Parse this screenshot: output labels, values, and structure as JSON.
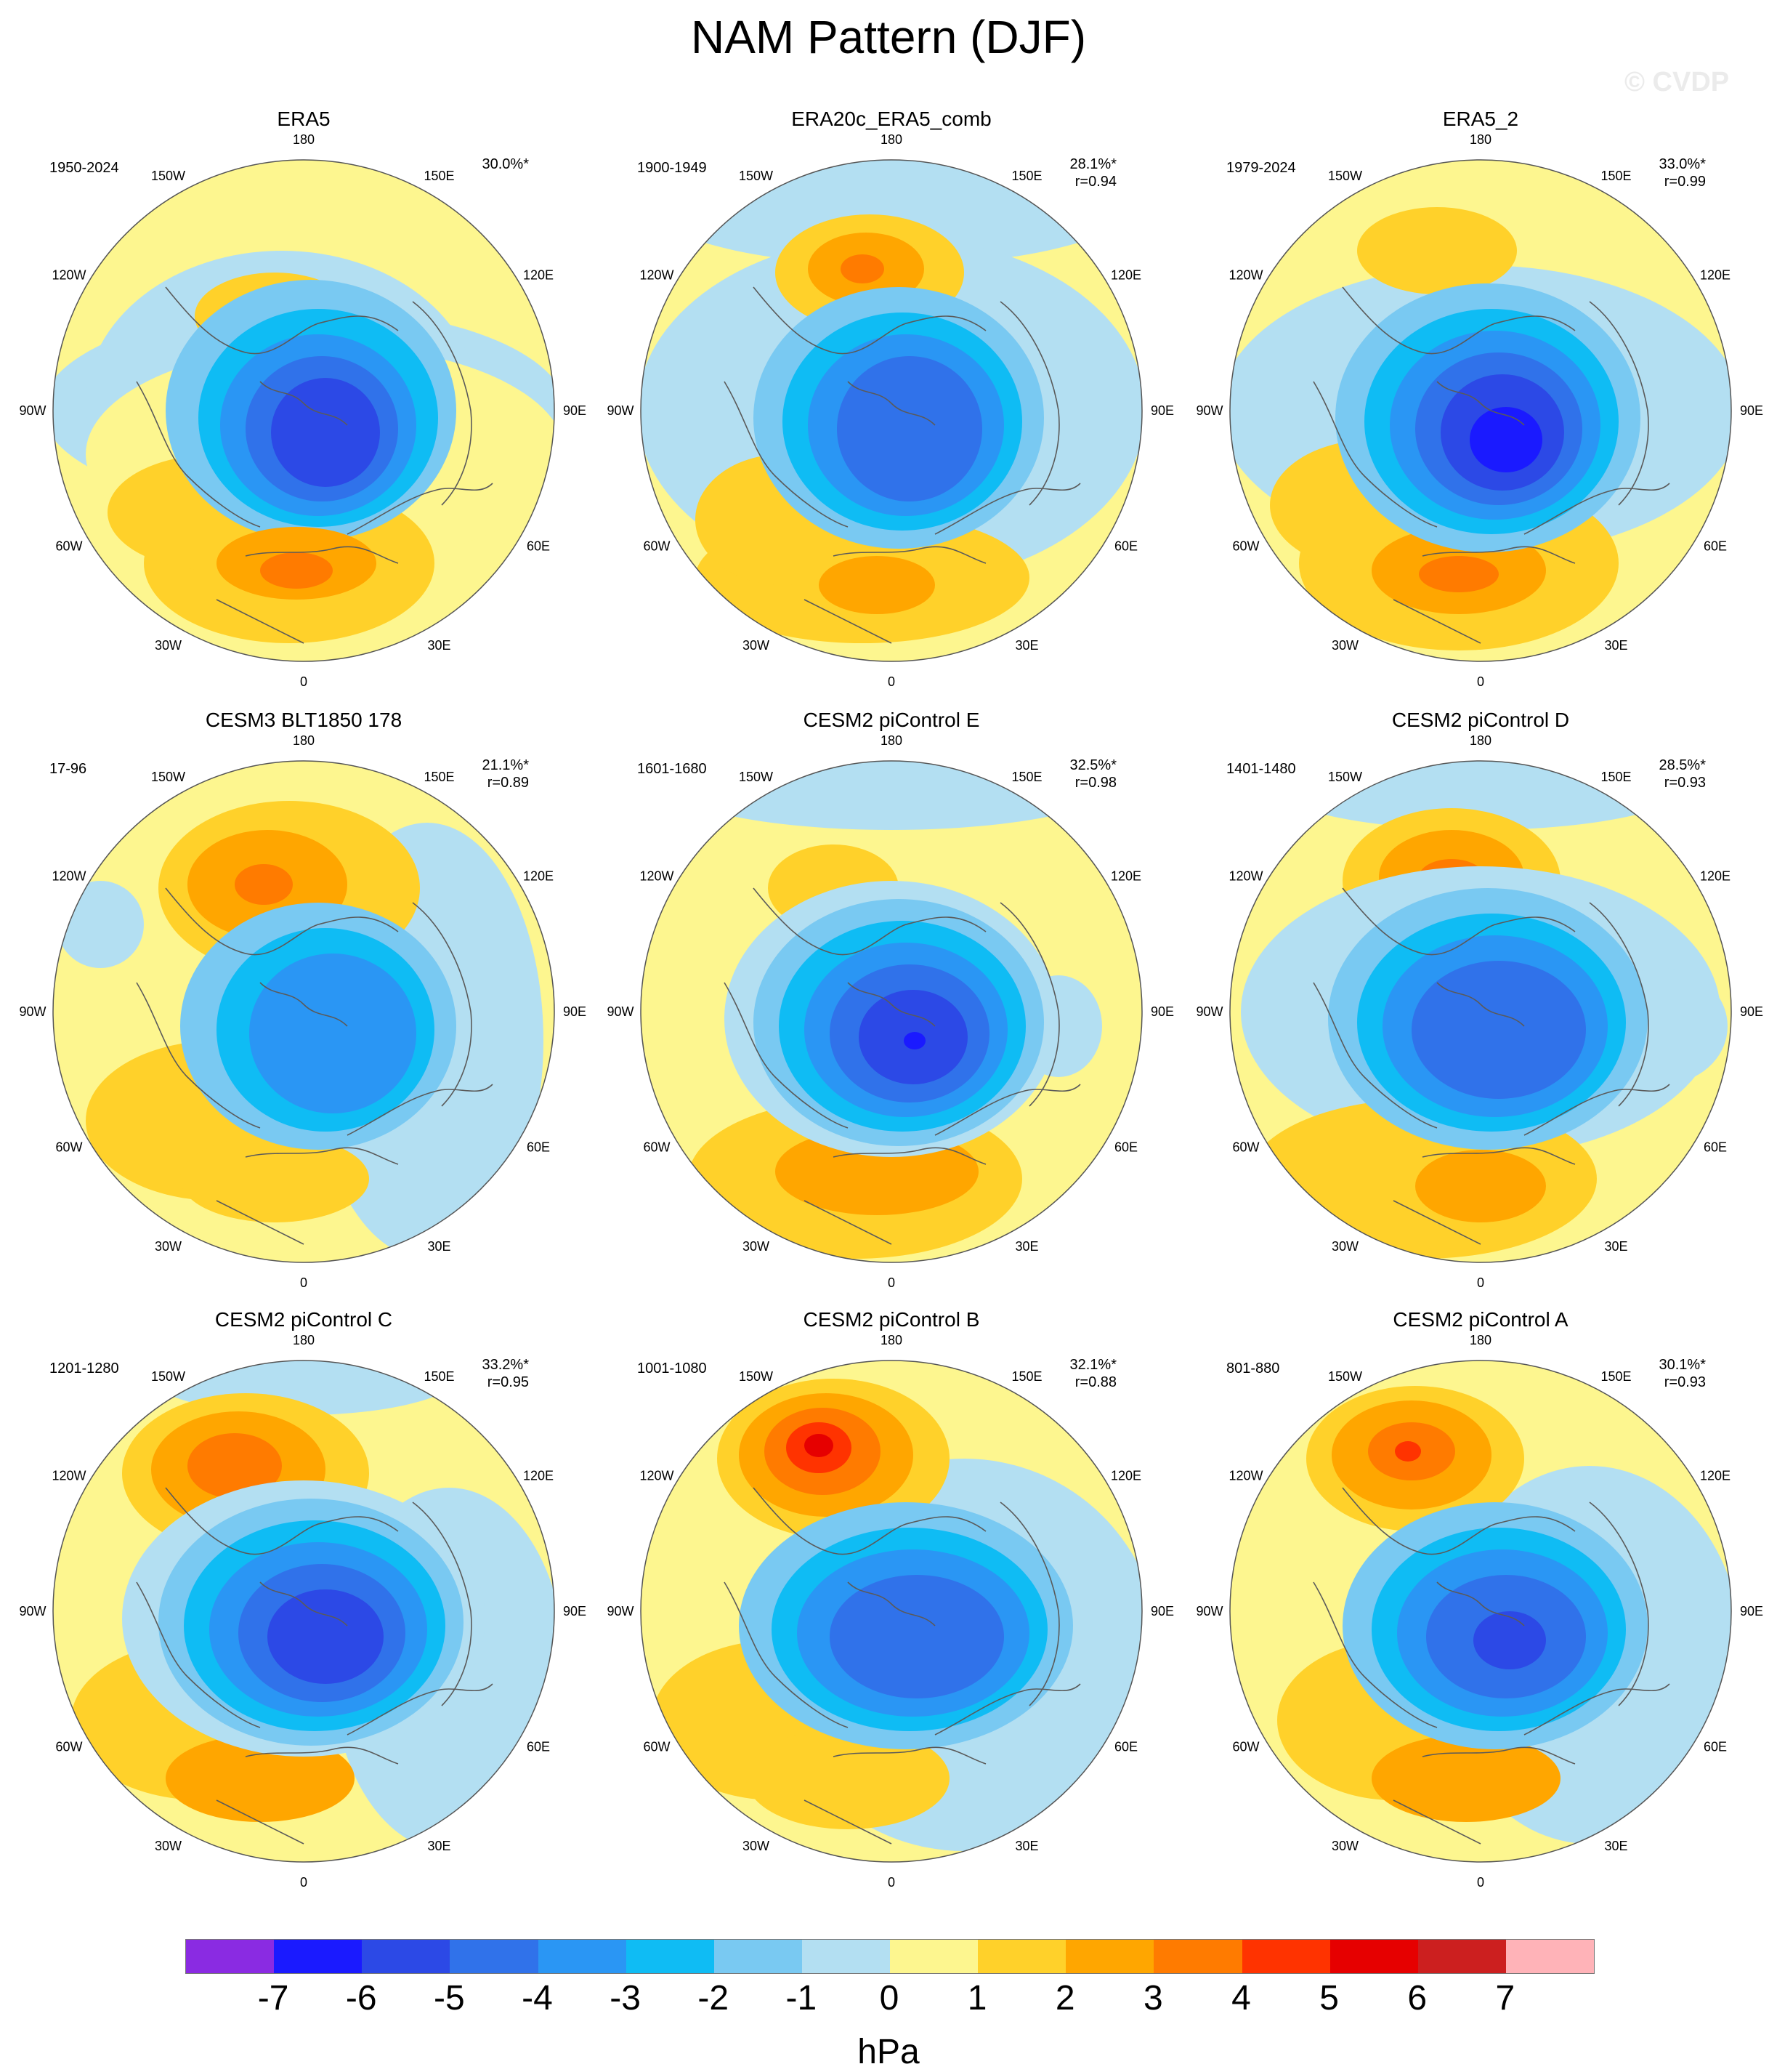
{
  "title": "NAM Pattern (DJF)",
  "watermark": "© CVDP",
  "colors": {
    "land_outline": "#5a5a5a",
    "circle_border": "#555555"
  },
  "longitude_labels": [
    "180",
    "150E",
    "120E",
    "90E",
    "60E",
    "30E",
    "0",
    "30W",
    "60W",
    "90W",
    "120W",
    "150W"
  ],
  "panels": [
    {
      "title": "ERA5",
      "period": "1950-2024",
      "variance": "30.0%*",
      "correlation": ""
    },
    {
      "title": "ERA20c_ERA5_comb",
      "period": "1900-1949",
      "variance": "28.1%*",
      "correlation": "r=0.94"
    },
    {
      "title": "ERA5_2",
      "period": "1979-2024",
      "variance": "33.0%*",
      "correlation": "r=0.99"
    },
    {
      "title": "CESM3 BLT1850 178",
      "period": "17-96",
      "variance": "21.1%*",
      "correlation": "r=0.89"
    },
    {
      "title": "CESM2 piControl E",
      "period": "1601-1680",
      "variance": "32.5%*",
      "correlation": "r=0.98"
    },
    {
      "title": "CESM2 piControl D",
      "period": "1401-1480",
      "variance": "28.5%*",
      "correlation": "r=0.93"
    },
    {
      "title": "CESM2 piControl C",
      "period": "1201-1280",
      "variance": "33.2%*",
      "correlation": "r=0.95"
    },
    {
      "title": "CESM2 piControl B",
      "period": "1001-1080",
      "variance": "32.1%*",
      "correlation": "r=0.88"
    },
    {
      "title": "CESM2 piControl A",
      "period": "801-880",
      "variance": "30.1%*",
      "correlation": "r=0.93"
    }
  ],
  "colorbar": {
    "units": "hPa",
    "ticks": [
      "-7",
      "-6",
      "-5",
      "-4",
      "-3",
      "-2",
      "-1",
      "0",
      "1",
      "2",
      "3",
      "4",
      "5",
      "6",
      "7"
    ],
    "colors": [
      "#8a2be2",
      "#1a1aff",
      "#2c49e6",
      "#3072ea",
      "#2a96f4",
      "#0fbcf4",
      "#79c9f2",
      "#b3dff2",
      "#fdf68f",
      "#ffd12a",
      "#ffa600",
      "#ff7b00",
      "#ff3300",
      "#e60000",
      "#cc1f1f",
      "#ffb3b8"
    ]
  }
}
